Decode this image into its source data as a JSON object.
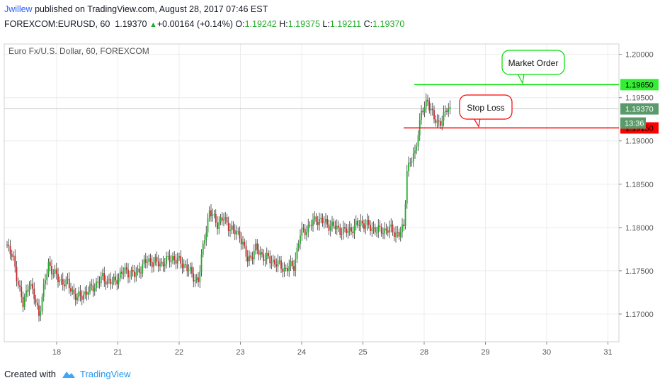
{
  "header": {
    "author": "Jwillew",
    "published_text": " published on TradingView.com, August 28, 2017 07:46 EST",
    "symbol": "FOREXCOM:EURUSD, 60",
    "last": "1.19370",
    "change": "+0.00164 (+0.14%)",
    "o_label": "O:",
    "o_value": "1.19242",
    "h_label": "H:",
    "h_value": "1.19375",
    "l_label": "L:",
    "l_value": "1.19211",
    "c_label": "C:",
    "c_value": "1.19370"
  },
  "footer": {
    "created_with": "Created with",
    "brand": "TradingView"
  },
  "colors": {
    "up": "#22ab2b",
    "down": "#c62828",
    "green_line": "#00dd00",
    "red_line": "#ff0000",
    "grid": "#ececec",
    "axis": "#555555"
  },
  "chart_data": {
    "type": "candlestick",
    "title": "Euro Fx/U.S. Dollar, 60, FOREXCOM",
    "ylim": [
      1.1668,
      1.2012
    ],
    "y_ticks": [
      "1.17000",
      "1.17500",
      "1.18000",
      "1.18500",
      "1.19000",
      "1.19500",
      "1.20000"
    ],
    "x_ticks": [
      "18",
      "21",
      "22",
      "23",
      "24",
      "25",
      "28",
      "29",
      "30",
      "31"
    ],
    "last_price_label": "1.19370",
    "countdown_label": "13:36",
    "levels": [
      {
        "name": "Market Order",
        "price": 1.1965,
        "price_label": "1.19650",
        "color": "#00dd00"
      },
      {
        "name": "Stop Loss",
        "price": 1.1915,
        "price_label": "1.19150",
        "color": "#ff0000"
      }
    ],
    "path": [
      [
        1.178,
        4
      ],
      [
        1.1762,
        8
      ],
      [
        1.171,
        14
      ],
      [
        1.1738,
        18
      ],
      [
        1.17,
        24
      ],
      [
        1.1758,
        30
      ],
      [
        1.174,
        36
      ],
      [
        1.1735,
        42
      ],
      [
        1.1718,
        48
      ],
      [
        1.1728,
        56
      ],
      [
        1.1742,
        64
      ],
      [
        1.1736,
        70
      ],
      [
        1.175,
        78
      ],
      [
        1.1745,
        84
      ],
      [
        1.1762,
        92
      ],
      [
        1.1758,
        100
      ],
      [
        1.1765,
        108
      ],
      [
        1.1756,
        116
      ],
      [
        1.1745,
        120
      ],
      [
        1.1738,
        124
      ],
      [
        1.179,
        128
      ],
      [
        1.1818,
        131
      ],
      [
        1.1805,
        136
      ],
      [
        1.181,
        140
      ],
      [
        1.1795,
        146
      ],
      [
        1.1792,
        150
      ],
      [
        1.1762,
        155
      ],
      [
        1.1775,
        160
      ],
      [
        1.1765,
        166
      ],
      [
        1.176,
        172
      ],
      [
        1.1752,
        178
      ],
      [
        1.1756,
        184
      ],
      [
        1.1792,
        188
      ],
      [
        1.1802,
        194
      ],
      [
        1.181,
        198
      ],
      [
        1.1805,
        204
      ],
      [
        1.18,
        210
      ],
      [
        1.1795,
        216
      ],
      [
        1.18,
        222
      ],
      [
        1.1806,
        226
      ],
      [
        1.18,
        232
      ],
      [
        1.1796,
        238
      ],
      [
        1.1798,
        244
      ],
      [
        1.1792,
        250
      ],
      [
        1.18,
        253
      ],
      [
        1.1868,
        255
      ],
      [
        1.1885,
        260
      ],
      [
        1.1912,
        262
      ],
      [
        1.1932,
        264
      ],
      [
        1.1938,
        266
      ],
      [
        1.1948,
        268
      ],
      [
        1.1925,
        272
      ],
      [
        1.192,
        274
      ],
      [
        1.1928,
        278
      ],
      [
        1.1936,
        280
      ],
      [
        1.1937,
        282
      ]
    ]
  }
}
